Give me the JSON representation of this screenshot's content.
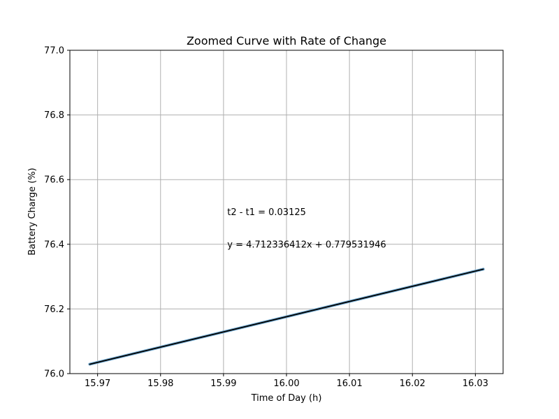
{
  "chart_data": {
    "type": "line",
    "title": "Zoomed Curve with Rate of Change",
    "xlabel": "Time of Day (h)",
    "ylabel": "Battery Charge (%)",
    "xlim": [
      15.9656,
      16.0344
    ],
    "ylim": [
      76.0,
      77.0
    ],
    "xticks": [
      15.97,
      15.98,
      15.99,
      16.0,
      16.01,
      16.02,
      16.03
    ],
    "xtick_labels": [
      "15.97",
      "15.98",
      "15.99",
      "16.00",
      "16.01",
      "16.02",
      "16.03"
    ],
    "yticks": [
      76.0,
      76.2,
      76.4,
      76.6,
      76.8,
      77.0
    ],
    "ytick_labels": [
      "76.0",
      "76.2",
      "76.4",
      "76.6",
      "76.8",
      "77.0"
    ],
    "grid": true,
    "series": [
      {
        "color": "#6fa8d0",
        "x": [
          15.96875,
          16.03125
        ],
        "y": [
          76.029,
          76.323
        ]
      },
      {
        "color": "#000000",
        "x": [
          15.96875,
          16.03125
        ],
        "y": [
          76.029,
          76.323
        ]
      }
    ],
    "annotations": [
      {
        "text": "t2 - t1 = 0.03125",
        "x": 15.9906,
        "y": 76.5
      },
      {
        "text": "y = 4.712336412x + 0.779531946",
        "x": 15.9906,
        "y": 76.4
      }
    ]
  }
}
